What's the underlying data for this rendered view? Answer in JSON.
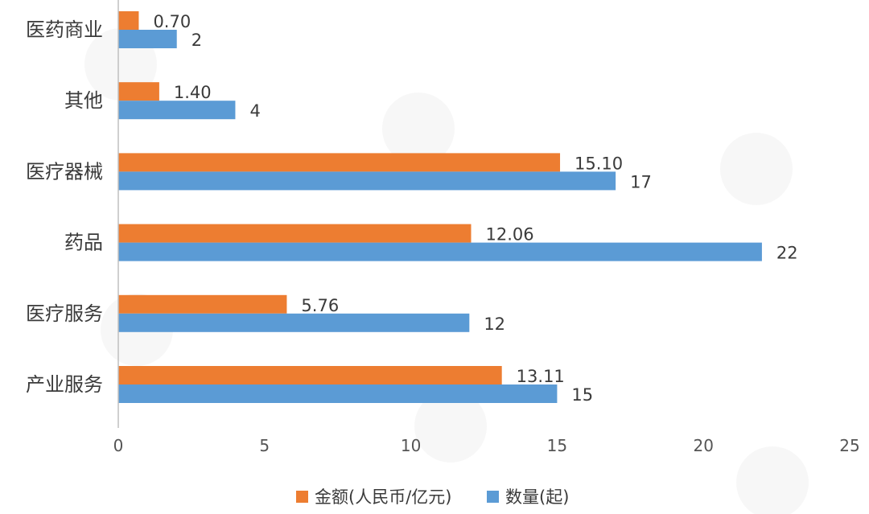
{
  "chart_data": {
    "type": "bar",
    "orientation": "horizontal",
    "categories": [
      "医药商业",
      "其他",
      "医疗器械",
      "药品",
      "医疗服务",
      "产业服务"
    ],
    "series": [
      {
        "name": "金额(人民币/亿元)",
        "color": "#ed7d31",
        "values": [
          0.7,
          1.4,
          15.1,
          12.06,
          5.76,
          13.11
        ],
        "labels": [
          "0.70",
          "1.40",
          "15.10",
          "12.06",
          "5.76",
          "13.11"
        ]
      },
      {
        "name": "数量(起)",
        "color": "#5b9bd5",
        "values": [
          2,
          4,
          17,
          22,
          12,
          15
        ],
        "labels": [
          "2",
          "4",
          "17",
          "22",
          "12",
          "15"
        ]
      }
    ],
    "xlim": [
      0,
      25
    ],
    "xticks": [
      "0",
      "5",
      "10",
      "15",
      "20",
      "25"
    ],
    "xtick_values": [
      0,
      5,
      10,
      15,
      20,
      25
    ],
    "grid": false,
    "legend_position": "bottom"
  }
}
